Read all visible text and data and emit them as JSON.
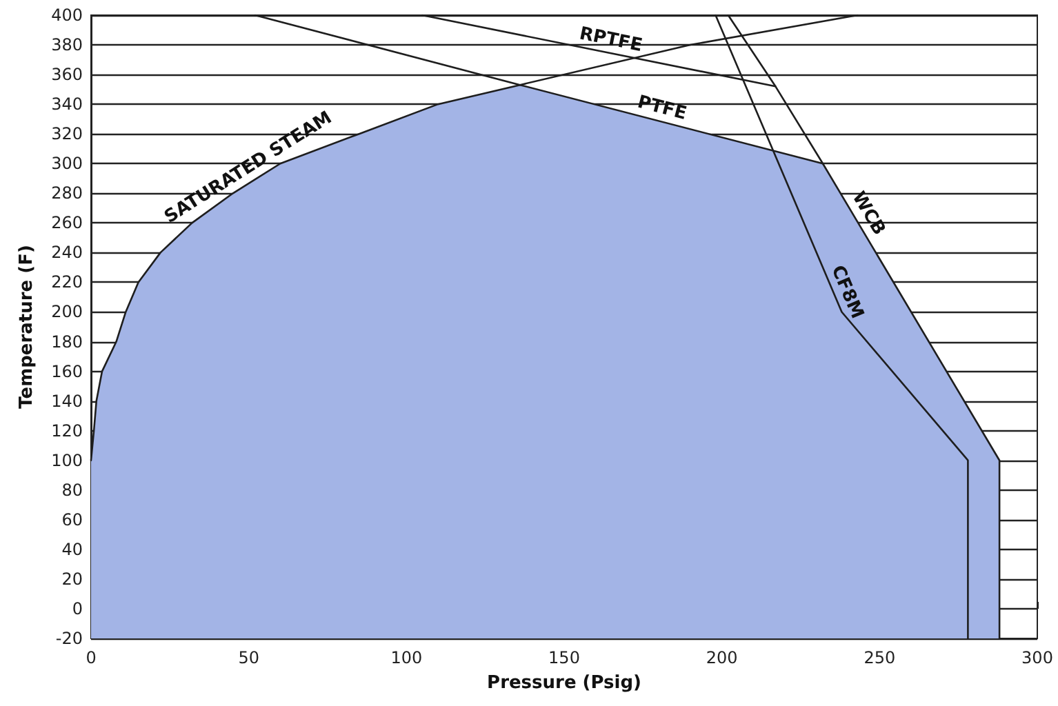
{
  "chart_data": {
    "type": "line",
    "xlabel": "Pressure (Psig)",
    "ylabel": "Temperature (F)",
    "xlim": [
      0,
      300
    ],
    "xticks": [
      0,
      50,
      100,
      150,
      200,
      250,
      300
    ],
    "ylim": [
      -20,
      400
    ],
    "yticks": [
      -20,
      0,
      20,
      40,
      60,
      80,
      100,
      120,
      140,
      160,
      180,
      200,
      220,
      240,
      260,
      280,
      300,
      320,
      340,
      360,
      380,
      400
    ],
    "grid": "y",
    "marker": "none",
    "line_style": "solid",
    "series": [
      {
        "type": "area",
        "color": "#a3b4e6",
        "x": [
          0,
          0,
          0.9,
          1.7,
          3.5,
          8,
          11,
          15,
          22,
          32,
          45,
          60,
          85,
          110,
          136,
          232,
          288,
          288
        ],
        "values": [
          -20,
          100,
          120,
          140,
          160,
          180,
          200,
          220,
          240,
          260,
          280,
          300,
          320,
          340,
          353,
          300,
          100,
          -20
        ]
      },
      {
        "color": "#1e1e1e",
        "x": [
          0,
          0.9,
          1.7,
          3.5,
          8,
          11,
          15,
          22,
          32,
          45,
          60,
          85,
          110,
          136,
          190,
          243
        ],
        "values": [
          100,
          120,
          140,
          160,
          180,
          200,
          220,
          240,
          260,
          280,
          300,
          320,
          340,
          353,
          380,
          400
        ]
      },
      {
        "color": "#1e1e1e",
        "x": [
          105,
          217
        ],
        "values": [
          400,
          352
        ]
      },
      {
        "color": "#1e1e1e",
        "x": [
          52,
          136,
          232
        ],
        "values": [
          400,
          353,
          300
        ]
      },
      {
        "color": "#1e1e1e",
        "x": [
          202,
          217,
          232,
          288,
          288
        ],
        "values": [
          400,
          352,
          300,
          100,
          -20
        ]
      },
      {
        "color": "#1e1e1e",
        "x": [
          198,
          238,
          278,
          278
        ],
        "values": [
          400,
          200,
          100,
          -20
        ]
      }
    ],
    "annotations": [
      {
        "text": "SATURATED STEAM",
        "x": 52,
        "y": 290
      },
      {
        "text": "RPTFE",
        "x": 164,
        "y": 375
      },
      {
        "text": "PTFE",
        "x": 180,
        "y": 329
      },
      {
        "text": "WCB",
        "x": 243,
        "y": 262
      },
      {
        "text": "CF8M",
        "x": 236,
        "y": 210
      }
    ]
  }
}
